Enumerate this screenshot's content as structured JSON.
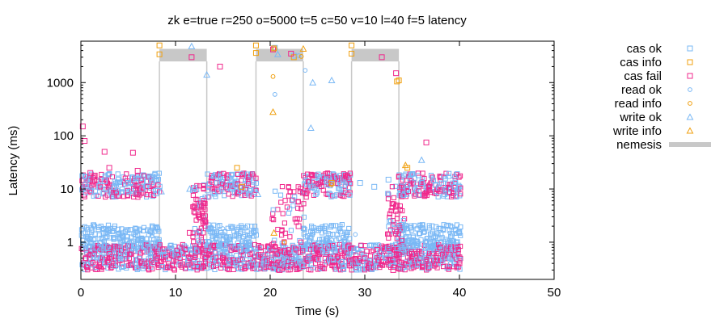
{
  "chart_data": {
    "type": "scatter",
    "title": "zk e=true r=250 o=5000 t=5 c=50 v=10 l=40 f=5 latency",
    "xlabel": "Time (s)",
    "ylabel": "Latency (ms)",
    "xlim": [
      0,
      50
    ],
    "ylim": [
      0.2,
      6000
    ],
    "y_scale": "log",
    "x_ticks": [
      0,
      10,
      20,
      30,
      40,
      50
    ],
    "x_tick_labels": [
      "0",
      "10",
      "20",
      "30",
      "40",
      "50"
    ],
    "y_ticks": [
      1,
      10,
      100,
      1000
    ],
    "y_tick_labels": [
      "1",
      "10",
      "100",
      "1000"
    ],
    "grid": false,
    "legend_position": "right",
    "nemesis_intervals": [
      [
        8.3,
        13.3
      ],
      [
        18.5,
        23.5
      ],
      [
        28.6,
        33.6
      ]
    ],
    "series": [
      {
        "name": "cas ok",
        "marker": "square",
        "color": "#7ab8f5",
        "points": [
          [
            0.5,
            12
          ],
          [
            1.5,
            9
          ],
          [
            2.5,
            14
          ],
          [
            3.5,
            11
          ],
          [
            5,
            13
          ],
          [
            6.5,
            10
          ],
          [
            7.5,
            15
          ],
          [
            14.5,
            9
          ],
          [
            16,
            12
          ],
          [
            17.5,
            10
          ],
          [
            20.5,
            4500
          ],
          [
            22.5,
            3200
          ],
          [
            24.5,
            11
          ],
          [
            26,
            14
          ],
          [
            27.5,
            12
          ],
          [
            29.5,
            13
          ],
          [
            31,
            11
          ],
          [
            32.5,
            15
          ],
          [
            34.5,
            10
          ],
          [
            36,
            13
          ],
          [
            37.5,
            12
          ],
          [
            39.5,
            11
          ]
        ]
      },
      {
        "name": "cas info",
        "marker": "square",
        "color": "#f0a010",
        "points": [
          [
            8.3,
            5000
          ],
          [
            8.3,
            3400
          ],
          [
            18.5,
            5000
          ],
          [
            18.5,
            3600
          ],
          [
            20.4,
            4400
          ],
          [
            22.5,
            3000
          ],
          [
            28.6,
            5000
          ],
          [
            28.6,
            3500
          ],
          [
            33.6,
            1100
          ],
          [
            33.4,
            1050
          ],
          [
            16.5,
            25
          ],
          [
            17,
            11
          ],
          [
            26.5,
            13
          ],
          [
            34.5,
            25
          ]
        ]
      },
      {
        "name": "cas fail",
        "marker": "square",
        "color": "#f0288c",
        "points": [
          [
            0.2,
            150
          ],
          [
            0.4,
            80
          ],
          [
            2.5,
            50
          ],
          [
            5.5,
            48
          ],
          [
            11.7,
            3000
          ],
          [
            14.7,
            2000
          ],
          [
            20.3,
            4200
          ],
          [
            22.2,
            3500
          ],
          [
            31.8,
            3000
          ],
          [
            33.3,
            1500
          ],
          [
            36.5,
            75
          ],
          [
            1,
            20
          ],
          [
            3,
            25
          ],
          [
            6,
            22
          ],
          [
            0.5,
            0.5
          ],
          [
            3,
            0.6
          ],
          [
            7,
            0.4
          ],
          [
            11.5,
            1.5
          ],
          [
            12.5,
            3
          ],
          [
            13,
            6
          ],
          [
            15,
            0.5
          ],
          [
            19,
            0.8
          ],
          [
            21,
            0.3
          ],
          [
            23,
            2
          ],
          [
            25,
            0.7
          ],
          [
            30,
            0.5
          ],
          [
            33,
            0.3
          ],
          [
            35,
            0.6
          ],
          [
            38,
            0.8
          ],
          [
            40,
            0.4
          ]
        ]
      },
      {
        "name": "read ok",
        "marker": "circle",
        "color": "#7ab8f5",
        "points": [
          [
            1,
            1.2
          ],
          [
            2.5,
            0.9
          ],
          [
            4,
            1.5
          ],
          [
            6,
            0.8
          ],
          [
            7.5,
            1.3
          ],
          [
            12.5,
            1
          ],
          [
            15,
            1.8
          ],
          [
            17.5,
            0.7
          ],
          [
            21.5,
            0.5
          ],
          [
            24.5,
            1.6
          ],
          [
            26.5,
            1.1
          ],
          [
            29,
            1.4
          ],
          [
            31.5,
            0.9
          ],
          [
            34,
            1.7
          ],
          [
            36.5,
            1.2
          ],
          [
            39,
            1.5
          ],
          [
            23.7,
            1700
          ],
          [
            20.5,
            600
          ],
          [
            23,
            3200
          ],
          [
            12,
            10
          ],
          [
            17,
            20
          ]
        ]
      },
      {
        "name": "read info",
        "marker": "circle",
        "color": "#f0a010",
        "points": [
          [
            20.3,
            1300
          ],
          [
            20.5,
            4300
          ],
          [
            23.3,
            3100
          ],
          [
            26.5,
            12
          ],
          [
            21.5,
            1.0
          ]
        ]
      },
      {
        "name": "write ok",
        "marker": "triangle",
        "color": "#7ab8f5",
        "points": [
          [
            11.7,
            4800
          ],
          [
            13.3,
            1400
          ],
          [
            24.5,
            1000
          ],
          [
            26.5,
            1100
          ],
          [
            24.3,
            140
          ],
          [
            20.8,
            3400
          ],
          [
            11.5,
            10
          ],
          [
            14,
            18
          ],
          [
            36,
            35
          ],
          [
            39.5,
            18
          ],
          [
            8.5,
            9
          ],
          [
            18.7,
            8
          ]
        ]
      },
      {
        "name": "write info",
        "marker": "triangle",
        "color": "#f0a010",
        "points": [
          [
            20.3,
            280
          ],
          [
            20.4,
            1.5
          ],
          [
            23.5,
            4300
          ],
          [
            34.3,
            28
          ]
        ]
      },
      {
        "name": "nemesis",
        "marker": "bar",
        "color": "#c8c8c8",
        "points": []
      }
    ]
  }
}
